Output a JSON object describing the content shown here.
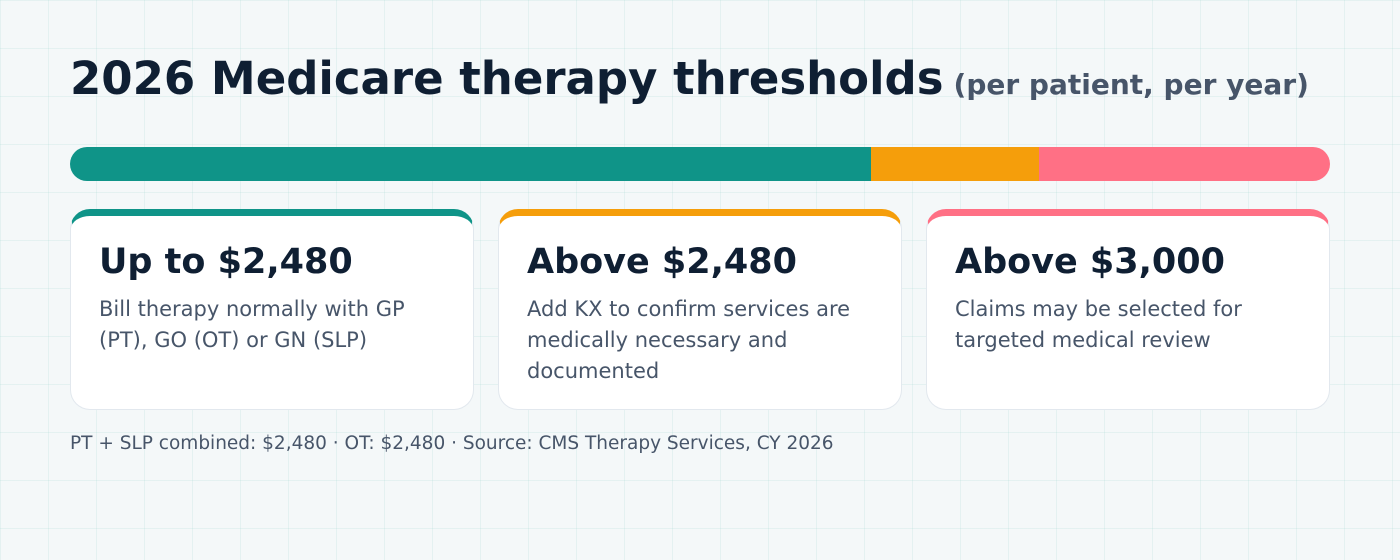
{
  "header": {
    "title": "2026 Medicare therapy thresholds",
    "subtitle": "(per patient, per year)"
  },
  "threshold_bar": {
    "segments": [
      {
        "name": "up-to-2480",
        "value": 2480,
        "color": "#0f9488"
      },
      {
        "name": "above-2480",
        "value": 520,
        "color": "#f59e0b"
      },
      {
        "name": "above-3000",
        "value": 900,
        "color": "#ff7085"
      }
    ]
  },
  "cards": [
    {
      "title": "Up to $2,480",
      "description": "Bill therapy normally with GP (PT), GO (OT) or GN (SLP)",
      "color": "#0f9488"
    },
    {
      "title": "Above $2,480",
      "description": "Add KX to confirm services are medically necessary and documented",
      "color": "#f59e0b"
    },
    {
      "title": "Above $3,000",
      "description": "Claims may be selected for targeted medical review",
      "color": "#ff7085"
    }
  ],
  "footnote": "PT + SLP combined: $2,480 · OT: $2,480 · Source: CMS Therapy Services, CY 2026"
}
